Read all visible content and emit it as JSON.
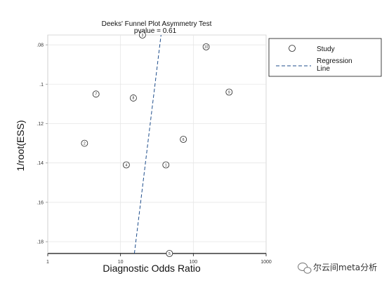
{
  "chart_data": {
    "type": "scatter",
    "title": "Deeks' Funnel Plot Asymmetry Test",
    "subtitle": "pvalue =   0.61",
    "xlabel": "Diagnostic Odds Ratio",
    "ylabel": "1/root(ESS)",
    "x_scale": "log",
    "xlim": [
      1,
      1000
    ],
    "x_ticks": [
      1,
      10,
      100,
      1000
    ],
    "x_tick_labels": [
      "1",
      "10",
      "100",
      "1000"
    ],
    "ylim": [
      0.075,
      0.186
    ],
    "y_reversed": true,
    "y_ticks": [
      0.08,
      0.1,
      0.12,
      0.14,
      0.16,
      0.18
    ],
    "y_tick_labels": [
      ".08",
      ".1",
      ".12",
      ".14",
      ".16",
      ".18"
    ],
    "grid": true,
    "points": [
      {
        "id": "1",
        "x": 42,
        "y": 0.141
      },
      {
        "id": "2",
        "x": 3.2,
        "y": 0.13
      },
      {
        "id": "3",
        "x": 20,
        "y": 0.075
      },
      {
        "id": "4",
        "x": 12,
        "y": 0.141
      },
      {
        "id": "5",
        "x": 47,
        "y": 0.186
      },
      {
        "id": "6",
        "x": 73,
        "y": 0.128
      },
      {
        "id": "7",
        "x": 4.6,
        "y": 0.105
      },
      {
        "id": "8",
        "x": 15,
        "y": 0.107
      },
      {
        "id": "9",
        "x": 310,
        "y": 0.104
      },
      {
        "id": "10",
        "x": 150,
        "y": 0.081
      }
    ],
    "regression_line": {
      "points": [
        {
          "x": 15.5,
          "y": 0.186
        },
        {
          "x": 36,
          "y": 0.075
        }
      ]
    },
    "colors": {
      "plot_background": "#ffffff",
      "grid": "#e6e6e6",
      "regression": "#1f4e8c",
      "points": "#222222"
    },
    "legend": {
      "placement": "right",
      "entries": [
        {
          "label": "Study",
          "kind": "marker"
        },
        {
          "label_lines": [
            "Regression",
            "Line"
          ],
          "kind": "dashed-line"
        }
      ]
    }
  },
  "watermark": {
    "text": "尔云间meta分析",
    "icon": "wechat-icon"
  }
}
